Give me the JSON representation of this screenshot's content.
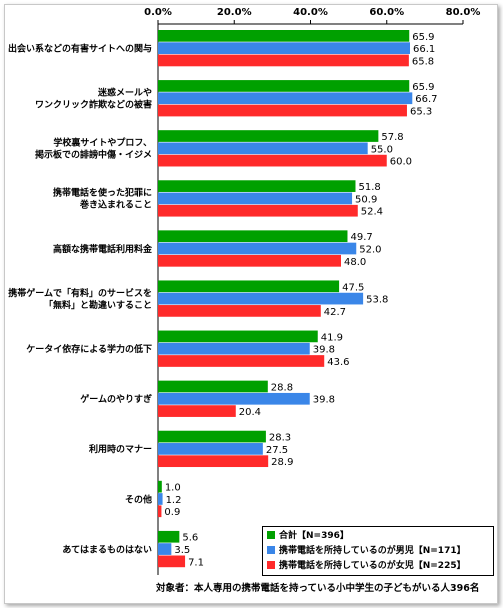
{
  "chart_data": {
    "type": "bar",
    "orientation": "horizontal",
    "xlim": [
      0,
      80
    ],
    "ticks": [
      "0.0%",
      "20.0%",
      "40.0%",
      "60.0%",
      "80.0%"
    ],
    "grid": false,
    "legend_placement": "bottom-right",
    "categories": [
      [
        "出会い系などの有害サイトへの関与"
      ],
      [
        "迷惑メールや",
        "ワンクリック詐欺などの被害"
      ],
      [
        "学校裏サイトやプロフ、",
        "掲示板での誹謗中傷・イジメ"
      ],
      [
        "携帯電話を使った犯罪に",
        "巻き込まれること"
      ],
      [
        "高額な携帯電話利用料金"
      ],
      [
        "携帯ゲームで「有料」のサービスを",
        "「無料」と勘違いすること"
      ],
      [
        "ケータイ依存による学力の低下"
      ],
      [
        "ゲームのやりすぎ"
      ],
      [
        "利用時のマナー"
      ],
      [
        "その他"
      ],
      [
        "あてはまるものはない"
      ]
    ],
    "series": [
      {
        "name": "合計【N=396】",
        "color": "#00a000",
        "values": [
          65.9,
          65.9,
          57.8,
          51.8,
          49.7,
          47.5,
          41.9,
          28.8,
          28.3,
          1.0,
          5.6
        ]
      },
      {
        "name": "携帯電話を所持しているのが男児【N=171】",
        "color": "#3a86e8",
        "values": [
          66.1,
          66.7,
          55.0,
          50.9,
          52.0,
          53.8,
          39.8,
          39.8,
          27.5,
          1.2,
          3.5
        ]
      },
      {
        "name": "携帯電話を所持しているのが女児【N=225】",
        "color": "#ff2a2a",
        "values": [
          65.8,
          65.3,
          60.0,
          52.4,
          48.0,
          42.7,
          43.6,
          20.4,
          28.9,
          0.9,
          7.1
        ]
      }
    ]
  },
  "footnote": "対象者：本人専用の携帯電話を持っている小中学生の子どもがいる人396名"
}
